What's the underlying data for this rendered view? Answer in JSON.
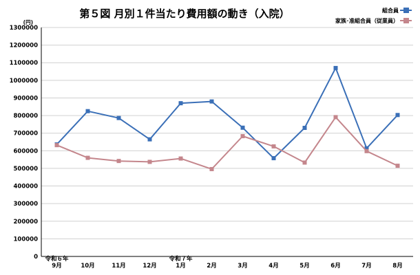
{
  "chart_data": {
    "type": "line",
    "title": "第５図 月別１件当たり費用額の動き（入院）",
    "y_unit": "(円)",
    "ylim": [
      0,
      1300000
    ],
    "y_ticks": [
      "0",
      "100000",
      "200000",
      "300000",
      "400000",
      "500000",
      "600000",
      "700000",
      "800000",
      "900000",
      "1000000",
      "1100000",
      "1200000",
      "1300000"
    ],
    "grid": true,
    "legend_position": "top-right",
    "categories": [
      "9月",
      "10月",
      "11月",
      "12月",
      "1月",
      "2月",
      "3月",
      "4月",
      "5月",
      "6月",
      "7月",
      "8月"
    ],
    "year_labels": [
      {
        "index": 0,
        "text": "令和６年"
      },
      {
        "index": 4,
        "text": "令和７年"
      }
    ],
    "series": [
      {
        "name": "組合員",
        "color": "#3a6fb7",
        "marker": "square",
        "values": [
          636000,
          825000,
          786000,
          665000,
          870000,
          880000,
          731000,
          558000,
          730000,
          1070000,
          614000,
          803000
        ]
      },
      {
        "name": "家族･准組合員（従業員）",
        "color": "#c4868c",
        "marker": "square",
        "values": [
          632000,
          560000,
          542000,
          537000,
          556000,
          496000,
          683000,
          625000,
          533000,
          791000,
          598000,
          515000
        ]
      }
    ]
  }
}
